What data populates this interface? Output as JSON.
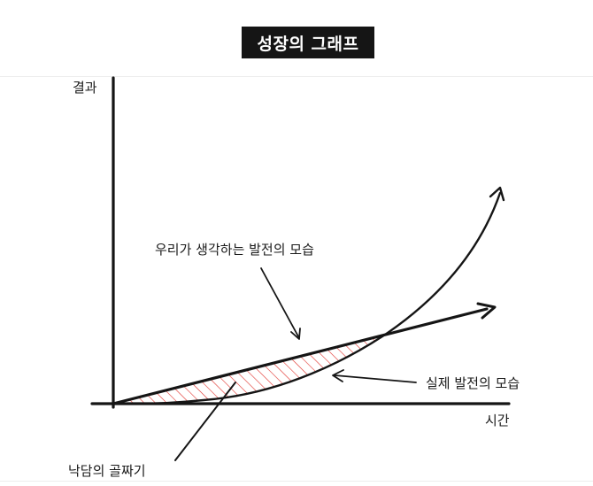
{
  "header": {
    "title": "성장의 그래프"
  },
  "diagram": {
    "y_axis_label": "결과",
    "x_axis_label": "시간",
    "expected_label": "우리가 생각하는 발전의 모습",
    "actual_label": "실제 발전의 모습",
    "gap_label": "낙담의 골짜기",
    "hatch_color": "#e0302a",
    "ink_color": "#151515"
  }
}
